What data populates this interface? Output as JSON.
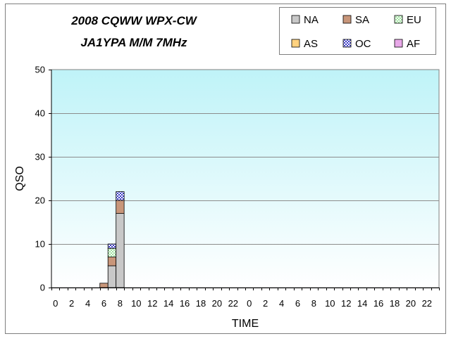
{
  "chart_data": {
    "type": "bar",
    "stacked": true,
    "title": "2008 CQWW WPX-CW",
    "subtitle": "JA1YPA  M/M  7MHz",
    "xlabel": "TIME",
    "ylabel": "QSO",
    "ylim": [
      0,
      50
    ],
    "yticks": [
      0,
      10,
      20,
      30,
      40,
      50
    ],
    "grid": true,
    "legend_position": "top-right",
    "categories": [
      "0",
      "1",
      "2",
      "3",
      "4",
      "5",
      "6",
      "7",
      "8",
      "9",
      "10",
      "11",
      "12",
      "13",
      "14",
      "15",
      "16",
      "17",
      "18",
      "19",
      "20",
      "21",
      "22",
      "23",
      "0",
      "1",
      "2",
      "3",
      "4",
      "5",
      "6",
      "7",
      "8",
      "9",
      "10",
      "11",
      "12",
      "13",
      "14",
      "15",
      "16",
      "17",
      "18",
      "19",
      "20",
      "21",
      "22",
      "23"
    ],
    "x_tick_labels": [
      "0",
      "",
      "2",
      "",
      "4",
      "",
      "6",
      "",
      "8",
      "",
      "10",
      "",
      "12",
      "",
      "14",
      "",
      "16",
      "",
      "18",
      "",
      "20",
      "",
      "22",
      "",
      "0",
      "",
      "2",
      "",
      "4",
      "",
      "6",
      "",
      "8",
      "",
      "10",
      "",
      "12",
      "",
      "14",
      "",
      "16",
      "",
      "18",
      "",
      "20",
      "",
      "22",
      ""
    ],
    "series": [
      {
        "name": "NA",
        "color": "#c8c8c8",
        "pattern": "solid",
        "values": [
          0,
          0,
          0,
          0,
          0,
          0,
          0,
          5,
          17,
          0,
          0,
          0,
          0,
          0,
          0,
          0,
          0,
          0,
          0,
          0,
          0,
          0,
          0,
          0,
          0,
          0,
          0,
          0,
          0,
          0,
          0,
          0,
          0,
          0,
          0,
          0,
          0,
          0,
          0,
          0,
          0,
          0,
          0,
          0,
          0,
          0,
          0,
          0
        ]
      },
      {
        "name": "SA",
        "color": "#c8967a",
        "pattern": "solid",
        "values": [
          0,
          0,
          0,
          0,
          0,
          0,
          1,
          2,
          3,
          0,
          0,
          0,
          0,
          0,
          0,
          0,
          0,
          0,
          0,
          0,
          0,
          0,
          0,
          0,
          0,
          0,
          0,
          0,
          0,
          0,
          0,
          0,
          0,
          0,
          0,
          0,
          0,
          0,
          0,
          0,
          0,
          0,
          0,
          0,
          0,
          0,
          0,
          0
        ]
      },
      {
        "name": "EU",
        "color": "#7fd97f",
        "pattern": "hatch",
        "values": [
          0,
          0,
          0,
          0,
          0,
          0,
          0,
          2,
          0,
          0,
          0,
          0,
          0,
          0,
          0,
          0,
          0,
          0,
          0,
          0,
          0,
          0,
          0,
          0,
          0,
          0,
          0,
          0,
          0,
          0,
          0,
          0,
          0,
          0,
          0,
          0,
          0,
          0,
          0,
          0,
          0,
          0,
          0,
          0,
          0,
          0,
          0,
          0
        ]
      },
      {
        "name": "AS",
        "color": "#ffd27f",
        "pattern": "solid",
        "values": [
          0,
          0,
          0,
          0,
          0,
          0,
          0,
          0,
          0,
          0,
          0,
          0,
          0,
          0,
          0,
          0,
          0,
          0,
          0,
          0,
          0,
          0,
          0,
          0,
          0,
          0,
          0,
          0,
          0,
          0,
          0,
          0,
          0,
          0,
          0,
          0,
          0,
          0,
          0,
          0,
          0,
          0,
          0,
          0,
          0,
          0,
          0,
          0
        ]
      },
      {
        "name": "OC",
        "color": "#5a5ad8",
        "pattern": "checker",
        "values": [
          0,
          0,
          0,
          0,
          0,
          0,
          0,
          1,
          2,
          0,
          0,
          0,
          0,
          0,
          0,
          0,
          0,
          0,
          0,
          0,
          0,
          0,
          0,
          0,
          0,
          0,
          0,
          0,
          0,
          0,
          0,
          0,
          0,
          0,
          0,
          0,
          0,
          0,
          0,
          0,
          0,
          0,
          0,
          0,
          0,
          0,
          0,
          0
        ]
      },
      {
        "name": "AF",
        "color": "#e8a8e8",
        "pattern": "solid",
        "values": [
          0,
          0,
          0,
          0,
          0,
          0,
          0,
          0,
          0,
          0,
          0,
          0,
          0,
          0,
          0,
          0,
          0,
          0,
          0,
          0,
          0,
          0,
          0,
          0,
          0,
          0,
          0,
          0,
          0,
          0,
          0,
          0,
          0,
          0,
          0,
          0,
          0,
          0,
          0,
          0,
          0,
          0,
          0,
          0,
          0,
          0,
          0,
          0
        ]
      }
    ]
  }
}
